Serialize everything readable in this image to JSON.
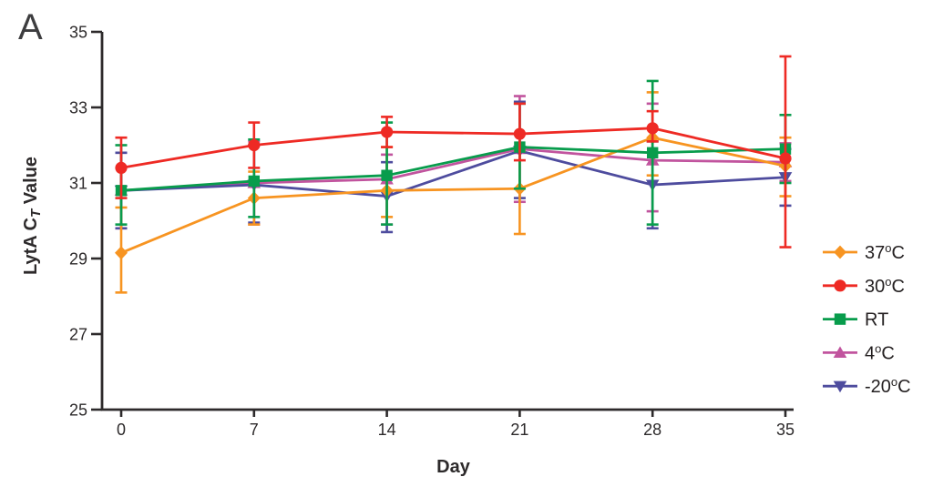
{
  "panel_label": "A",
  "colors": {
    "axis": "#2d2a2b",
    "tick_text": "#2d2a2b",
    "legend_text": "#231f20",
    "background": "#ffffff"
  },
  "chart_data": {
    "type": "line",
    "title": "",
    "xlabel": "Day",
    "ylabel": "LytA CT Value",
    "ylabel_rich": {
      "pre": "LytA C",
      "sub": "T",
      "post": " Value"
    },
    "xlim": [
      0,
      35
    ],
    "ylim": [
      25,
      35
    ],
    "x_ticks": [
      0,
      7,
      14,
      21,
      28,
      35
    ],
    "y_ticks": [
      25,
      27,
      29,
      31,
      33,
      35
    ],
    "grid": false,
    "legend_position": "right",
    "error_bars": true,
    "x": [
      0,
      7,
      14,
      21,
      28,
      35
    ],
    "series": [
      {
        "name": "37C",
        "label": "37°C",
        "color": "#F79421",
        "marker": "diamond",
        "values": [
          29.15,
          30.6,
          30.8,
          30.85,
          32.2,
          31.45
        ],
        "err_up": [
          1.2,
          0.7,
          1.15,
          1.0,
          1.2,
          0.75
        ],
        "err_down": [
          1.05,
          0.7,
          0.7,
          1.2,
          1.0,
          0.8
        ]
      },
      {
        "name": "30C",
        "label": "30°C",
        "color": "#EE2A24",
        "marker": "circle",
        "values": [
          31.4,
          32.0,
          32.35,
          32.3,
          32.45,
          31.65
        ],
        "err_up": [
          0.8,
          0.6,
          0.4,
          0.8,
          0.45,
          2.7
        ],
        "err_down": [
          0.8,
          0.6,
          0.4,
          0.7,
          0.35,
          2.35
        ]
      },
      {
        "name": "RT",
        "label": "RT",
        "color": "#089C4C",
        "marker": "square",
        "values": [
          30.8,
          31.05,
          31.2,
          31.95,
          31.8,
          31.9
        ],
        "err_up": [
          1.2,
          1.1,
          1.4,
          1.15,
          1.9,
          0.9
        ],
        "err_down": [
          0.9,
          0.95,
          1.3,
          1.1,
          1.9,
          0.9
        ]
      },
      {
        "name": "4C",
        "label": "4°C",
        "color": "#C1549E",
        "marker": "triangle-up",
        "values": [
          30.8,
          31.0,
          31.1,
          31.9,
          31.6,
          31.55
        ],
        "err_up": [
          1.0,
          1.1,
          0.65,
          1.4,
          1.5,
          0.5
        ],
        "err_down": [
          1.0,
          1.1,
          1.2,
          1.4,
          1.35,
          0.5
        ]
      },
      {
        "name": "minus20C",
        "label": "-20°C",
        "color": "#4E4C9E",
        "marker": "triangle-down",
        "values": [
          30.8,
          30.95,
          30.65,
          31.85,
          30.95,
          31.15
        ],
        "err_up": [
          1.0,
          1.05,
          0.9,
          1.3,
          1.15,
          0.75
        ],
        "err_down": [
          1.0,
          1.0,
          0.95,
          1.25,
          1.15,
          0.75
        ]
      }
    ]
  }
}
